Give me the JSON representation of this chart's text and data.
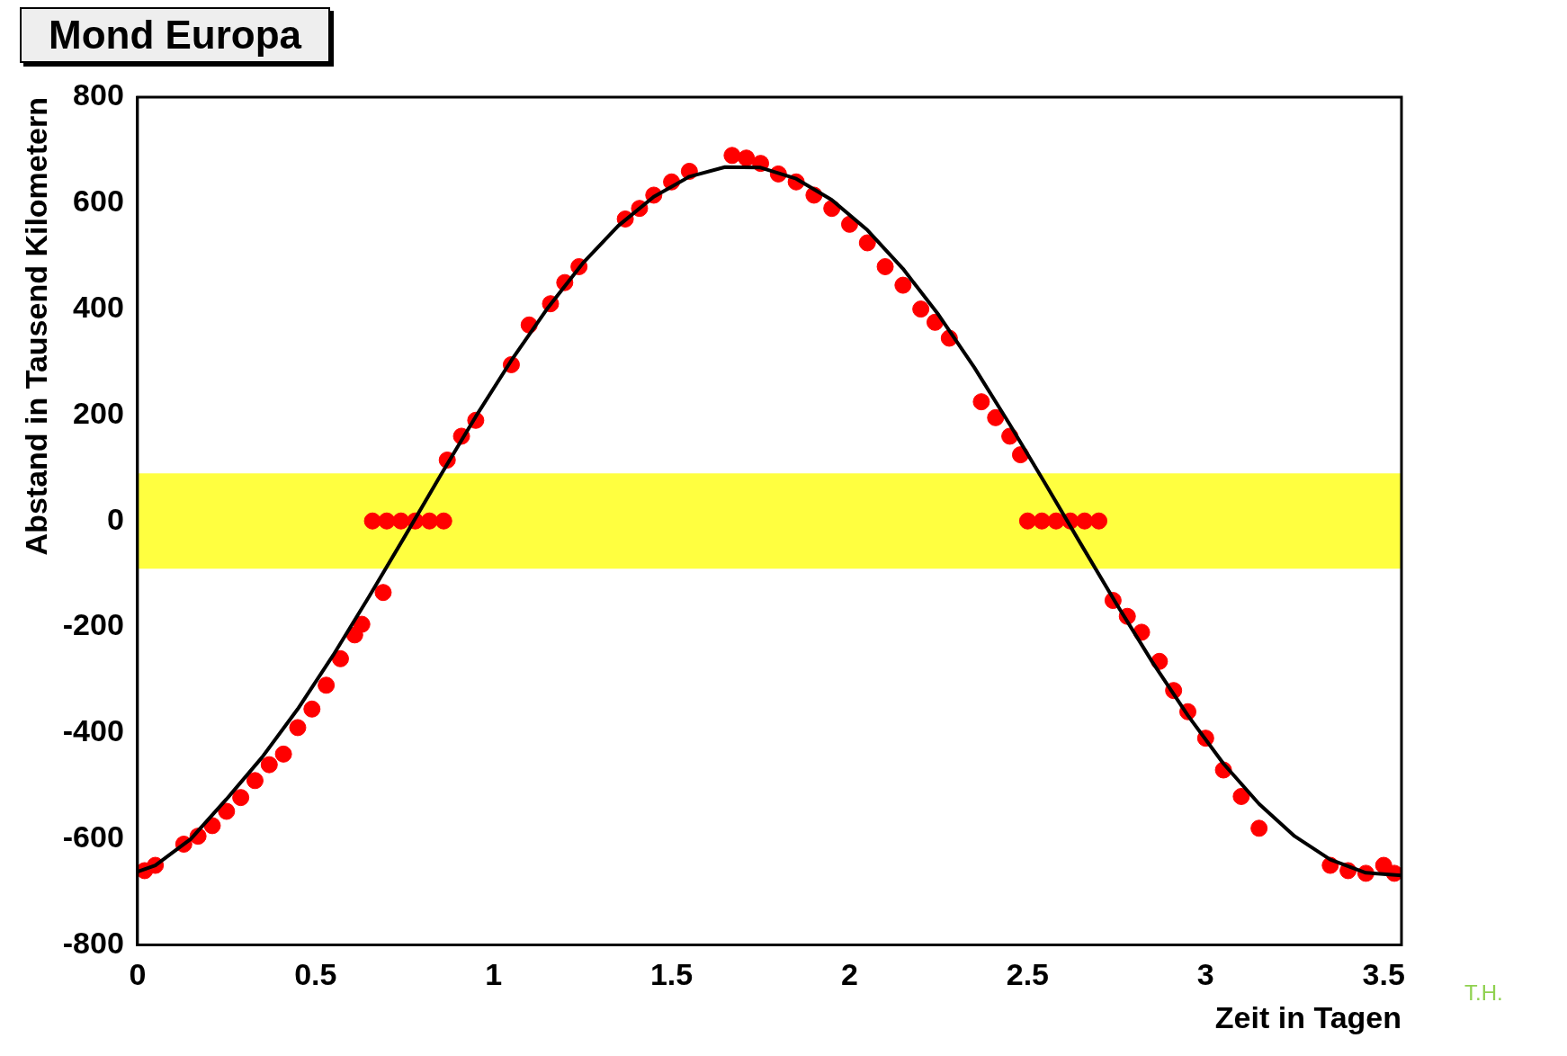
{
  "chart_data": {
    "type": "scatter",
    "title": "Mond Europa",
    "xlabel": "Zeit in Tagen",
    "ylabel": "Abstand in Tausend Kilometern",
    "annotations": [
      "T.H."
    ],
    "xlim": [
      0,
      3.55
    ],
    "xticks": [
      0,
      0.5,
      1,
      1.5,
      2,
      2.5,
      3,
      3.5
    ],
    "ylim": [
      -800,
      800
    ],
    "yticks": [
      -800,
      -600,
      -400,
      -200,
      0,
      200,
      400,
      600,
      800
    ],
    "grid": false,
    "legend": false,
    "bands": [
      {
        "axis": "y",
        "from": -90,
        "to": 90,
        "color": "#ffff00"
      }
    ],
    "series": [
      {
        "type": "scatter",
        "color": "#ff0000",
        "marker": "circle",
        "x": [
          0.02,
          0.05,
          0.13,
          0.17,
          0.21,
          0.25,
          0.29,
          0.33,
          0.37,
          0.41,
          0.45,
          0.49,
          0.53,
          0.57,
          0.61,
          0.63,
          0.69,
          0.66,
          0.7,
          0.74,
          0.78,
          0.82,
          0.86,
          0.87,
          0.91,
          0.95,
          1.05,
          1.1,
          1.16,
          1.2,
          1.24,
          1.37,
          1.41,
          1.45,
          1.5,
          1.55,
          1.67,
          1.71,
          1.75,
          1.8,
          1.85,
          1.9,
          1.95,
          2.0,
          2.05,
          2.1,
          2.15,
          2.2,
          2.24,
          2.28,
          2.37,
          2.41,
          2.45,
          2.48,
          2.5,
          2.54,
          2.58,
          2.62,
          2.66,
          2.7,
          2.74,
          2.78,
          2.82,
          2.87,
          2.91,
          2.95,
          3.0,
          3.05,
          3.1,
          3.15,
          3.35,
          3.4,
          3.45,
          3.5,
          3.53
        ],
        "values": [
          -660,
          -650,
          -610,
          -595,
          -575,
          -548,
          -522,
          -490,
          -460,
          -440,
          -390,
          -355,
          -310,
          -260,
          -215,
          -195,
          -135,
          0,
          0,
          0,
          0,
          0,
          0,
          115,
          160,
          190,
          295,
          370,
          410,
          450,
          480,
          570,
          590,
          615,
          640,
          660,
          690,
          685,
          675,
          655,
          640,
          615,
          590,
          560,
          525,
          480,
          445,
          400,
          375,
          345,
          225,
          195,
          160,
          125,
          0,
          0,
          0,
          0,
          0,
          0,
          -150,
          -180,
          -210,
          -265,
          -320,
          -360,
          -410,
          -470,
          -520,
          -580,
          -650,
          -660,
          -665,
          -650,
          -665
        ]
      },
      {
        "type": "line",
        "color": "#000000",
        "line_style": "solid",
        "marker": "none",
        "x": [
          0,
          0.05,
          0.15,
          0.25,
          0.35,
          0.45,
          0.55,
          0.65,
          0.75,
          0.85,
          0.95,
          1.05,
          1.15,
          1.25,
          1.35,
          1.45,
          1.55,
          1.65,
          1.75,
          1.85,
          1.95,
          2.05,
          2.15,
          2.25,
          2.35,
          2.45,
          2.55,
          2.65,
          2.75,
          2.85,
          2.95,
          3.05,
          3.15,
          3.25,
          3.35,
          3.45,
          3.55
        ],
        "values": [
          -662,
          -650,
          -600,
          -525,
          -446,
          -355,
          -253,
          -143,
          -30,
          85,
          197,
          303,
          400,
          486,
          557,
          612,
          650,
          668,
          667,
          646,
          606,
          549,
          476,
          389,
          290,
          182,
          70,
          -44,
          -157,
          -266,
          -367,
          -458,
          -534,
          -595,
          -639,
          -664,
          -669
        ]
      }
    ]
  }
}
